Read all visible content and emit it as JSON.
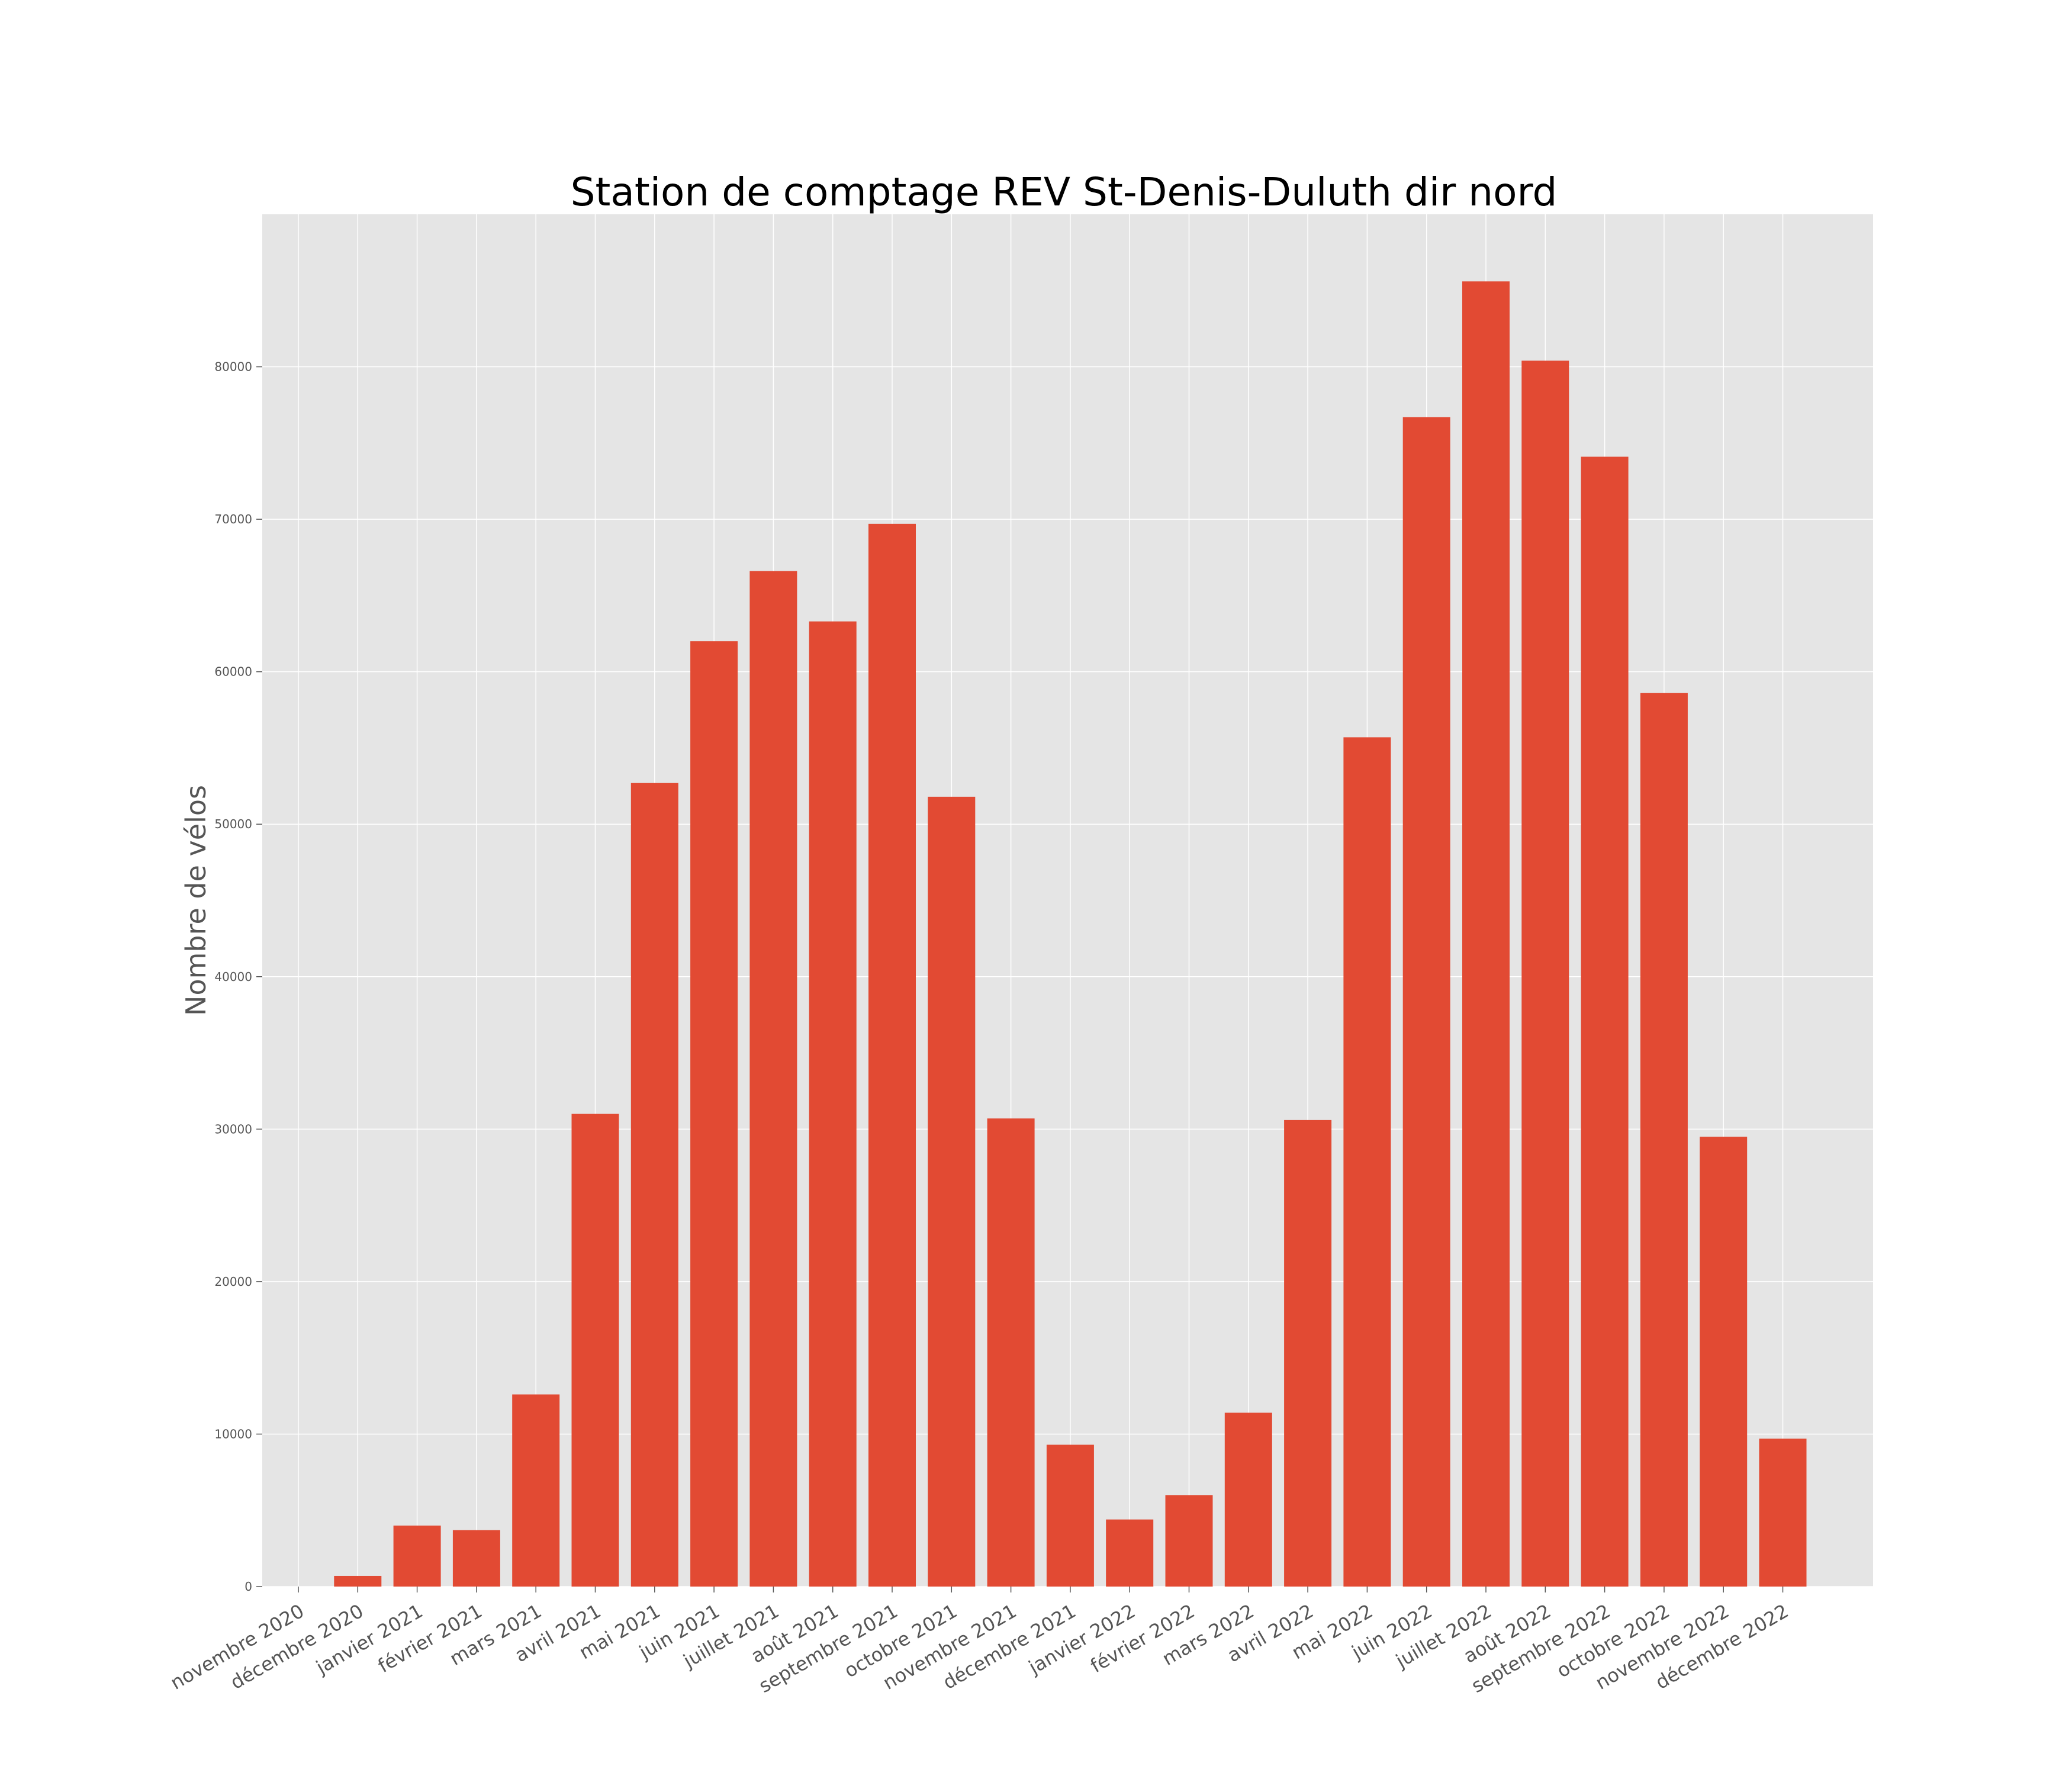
{
  "chart_data": {
    "type": "bar",
    "title": "Station de comptage REV St-Denis-Duluth dir nord",
    "xlabel": "",
    "ylabel": "Nombre de vélos",
    "ylim": [
      0,
      90000
    ],
    "yticks": [
      0,
      10000,
      20000,
      30000,
      40000,
      50000,
      60000,
      70000,
      80000
    ],
    "grid": true,
    "colors": {
      "bar": "#E24A33",
      "plot_background": "#E5E5E5",
      "grid": "#FFFFFF",
      "text": "#555555",
      "title": "#000000"
    },
    "categories": [
      "novembre 2020",
      "décembre 2020",
      "janvier 2021",
      "février 2021",
      "mars 2021",
      "avril 2021",
      "mai 2021",
      "juin 2021",
      "juillet 2021",
      "août 2021",
      "septembre 2021",
      "octobre 2021",
      "novembre 2021",
      "décembre 2021",
      "janvier 2022",
      "février 2022",
      "mars 2022",
      "avril 2022",
      "mai 2022",
      "juin 2022",
      "juillet 2022",
      "août 2022",
      "septembre 2022",
      "octobre 2022",
      "novembre 2022",
      "décembre 2022"
    ],
    "values": [
      0,
      700,
      4000,
      3700,
      12600,
      31000,
      52700,
      62000,
      66600,
      63300,
      69700,
      51800,
      30700,
      9300,
      4400,
      6000,
      11400,
      30600,
      55700,
      76700,
      85600,
      80400,
      74100,
      58600,
      29500,
      9700
    ]
  }
}
